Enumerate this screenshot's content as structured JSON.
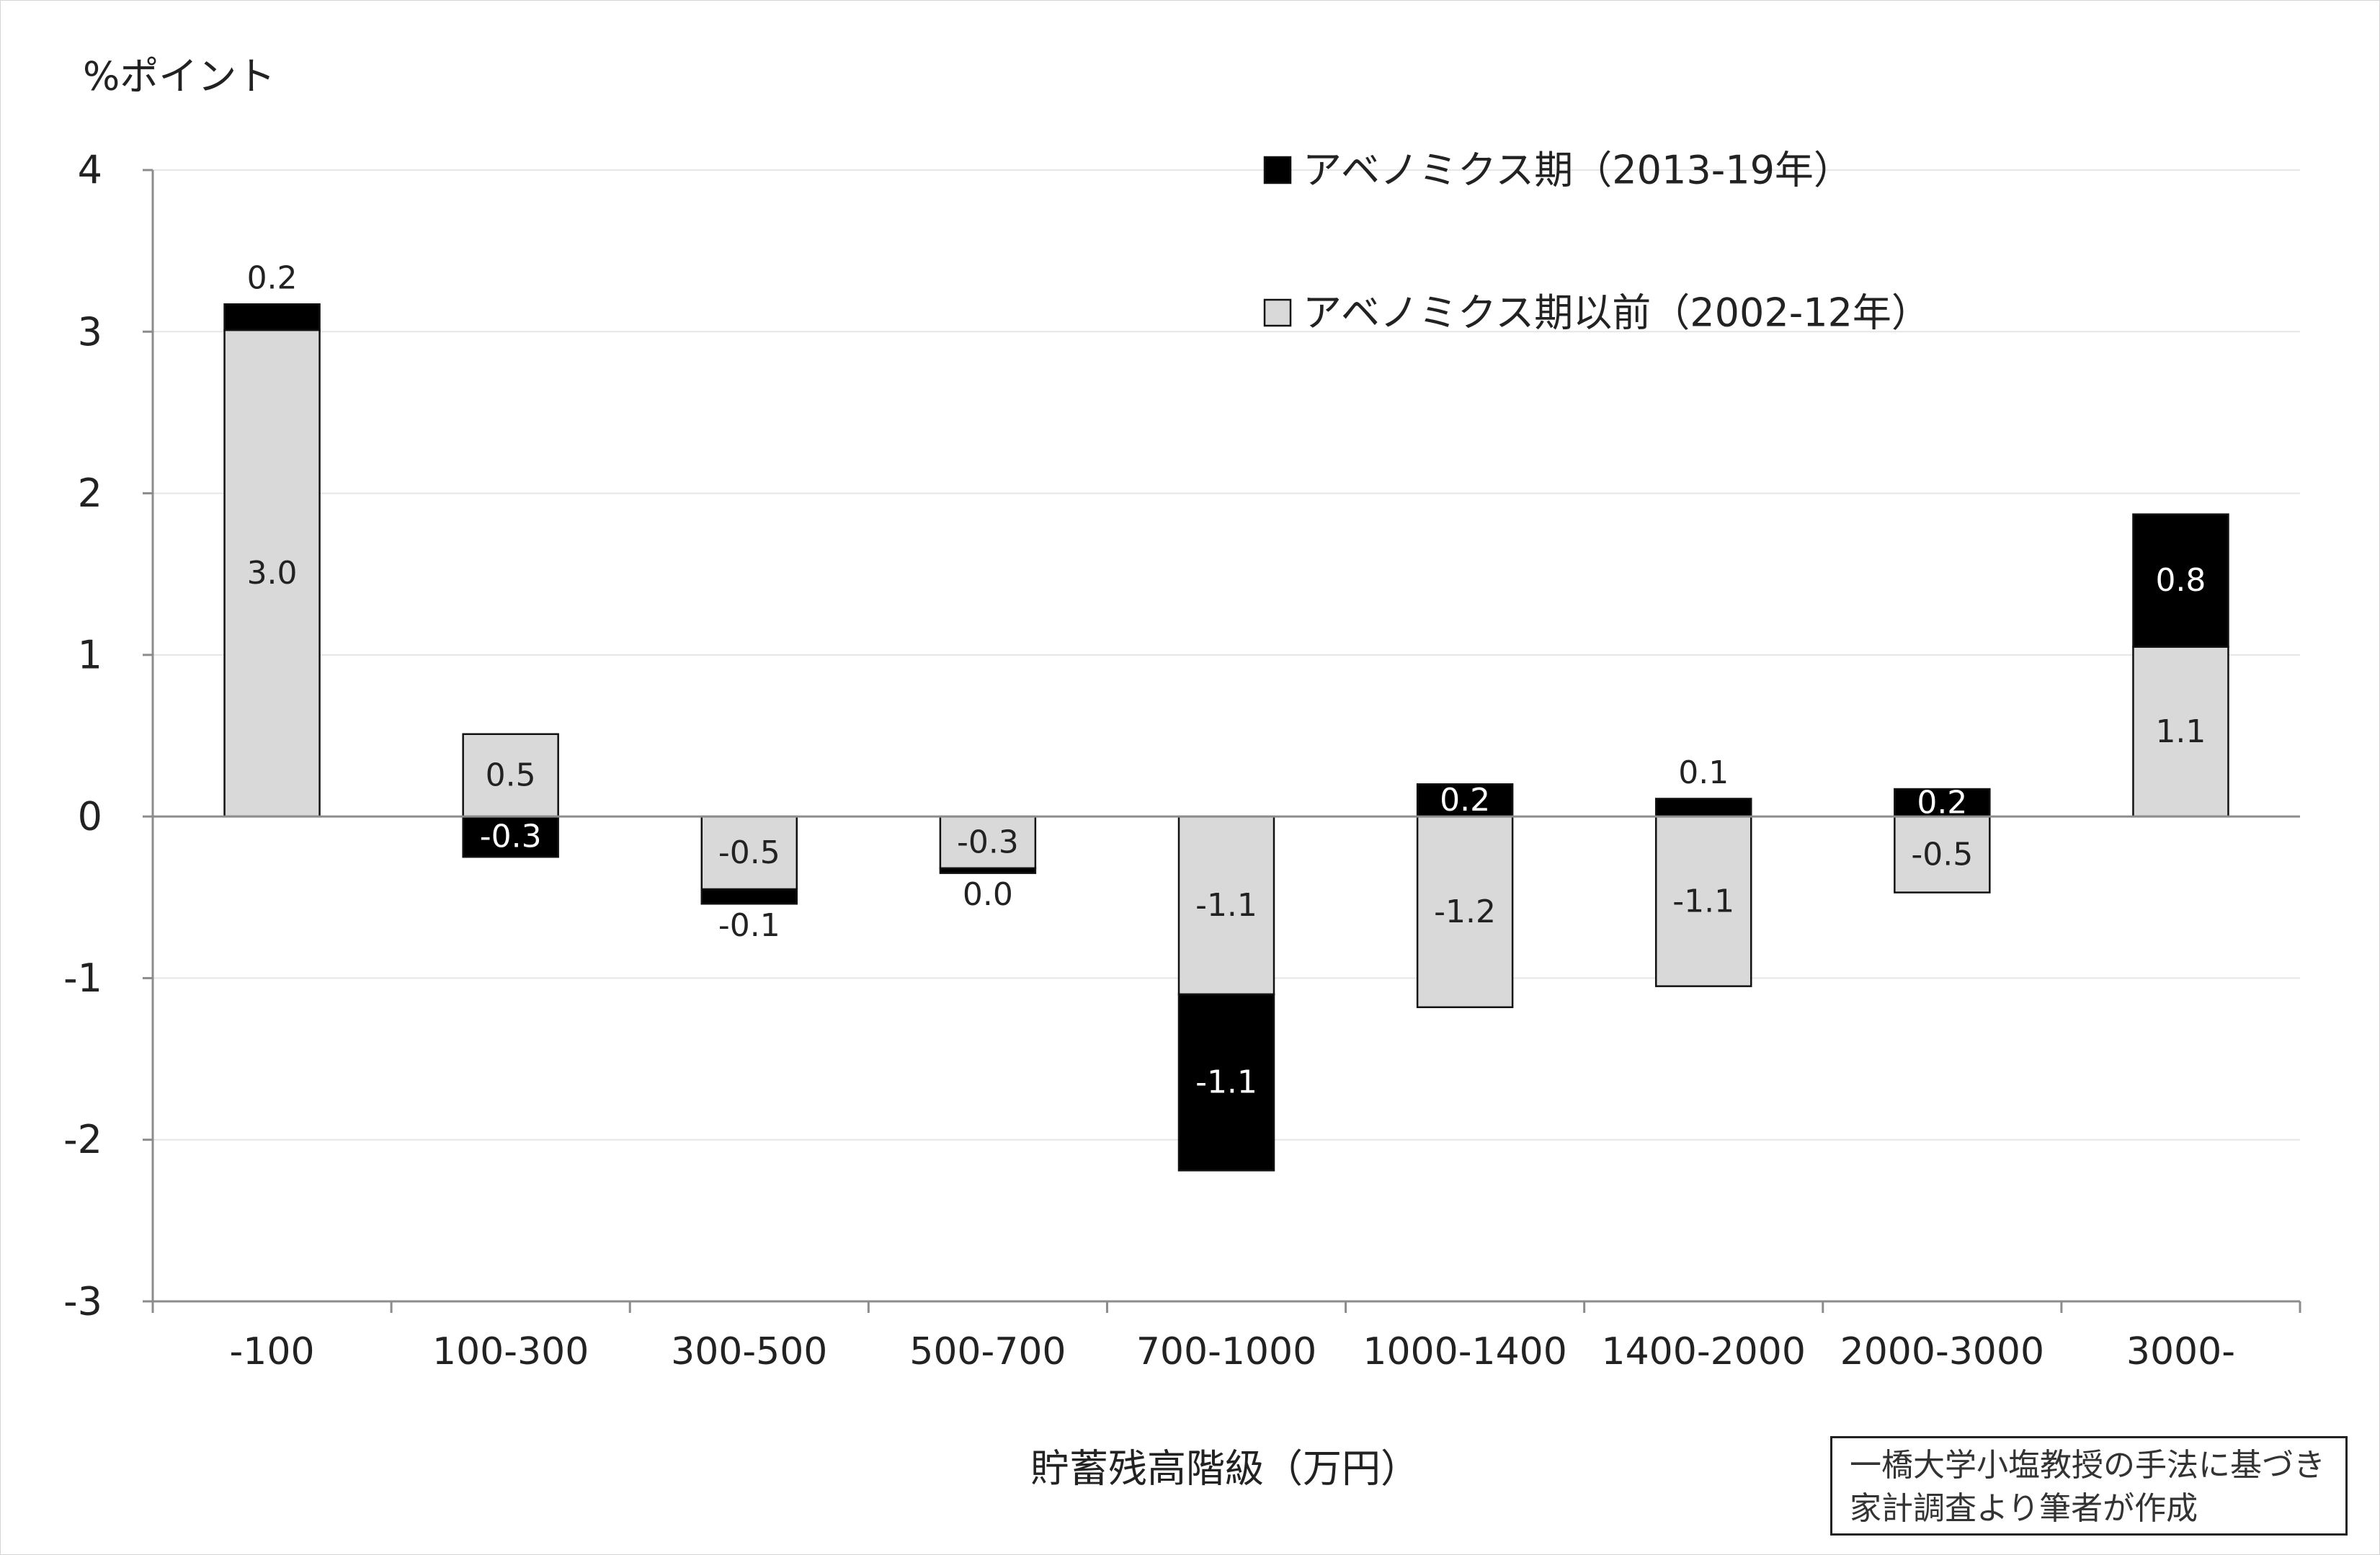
{
  "chart_data": {
    "type": "bar",
    "stacked": true,
    "title": "",
    "ylabel": "%ポイント",
    "xlabel": "貯蓄残高階級（万円）",
    "ylim": [
      -3,
      4
    ],
    "yticks": [
      "4",
      "3",
      "2",
      "1",
      "0",
      "-1",
      "-2",
      "-3"
    ],
    "grid": true,
    "legend_position": "top-right",
    "categories": [
      "-100",
      "100-300",
      "300-500",
      "500-700",
      "700-1000",
      "1000-1400",
      "1400-2000",
      "2000-3000",
      "3000-"
    ],
    "series": [
      {
        "name": "アベノミクス期以前（2002-12年）",
        "color": "#d9d9d9",
        "values": [
          3.01,
          0.51,
          -0.45,
          -0.32,
          -1.1,
          -1.18,
          -1.05,
          -0.47,
          1.05
        ],
        "labels": [
          "3.0",
          "0.5",
          "-0.5",
          "-0.3",
          "-1.1",
          "-1.2",
          "-1.1",
          "-0.5",
          "1.1"
        ]
      },
      {
        "name": "アベノミクス期（2013-19年）",
        "color": "#000000",
        "values": [
          0.16,
          -0.25,
          -0.09,
          -0.03,
          -1.09,
          0.2,
          0.11,
          0.17,
          0.82
        ],
        "labels": [
          "0.2",
          "-0.3",
          "-0.1",
          "0.0",
          "-1.1",
          "0.2",
          "0.1",
          "0.2",
          "0.8"
        ]
      }
    ]
  },
  "note": {
    "line1": "一橋大学小塩教授の手法に基づき",
    "line2": "家計調査より筆者が作成"
  }
}
